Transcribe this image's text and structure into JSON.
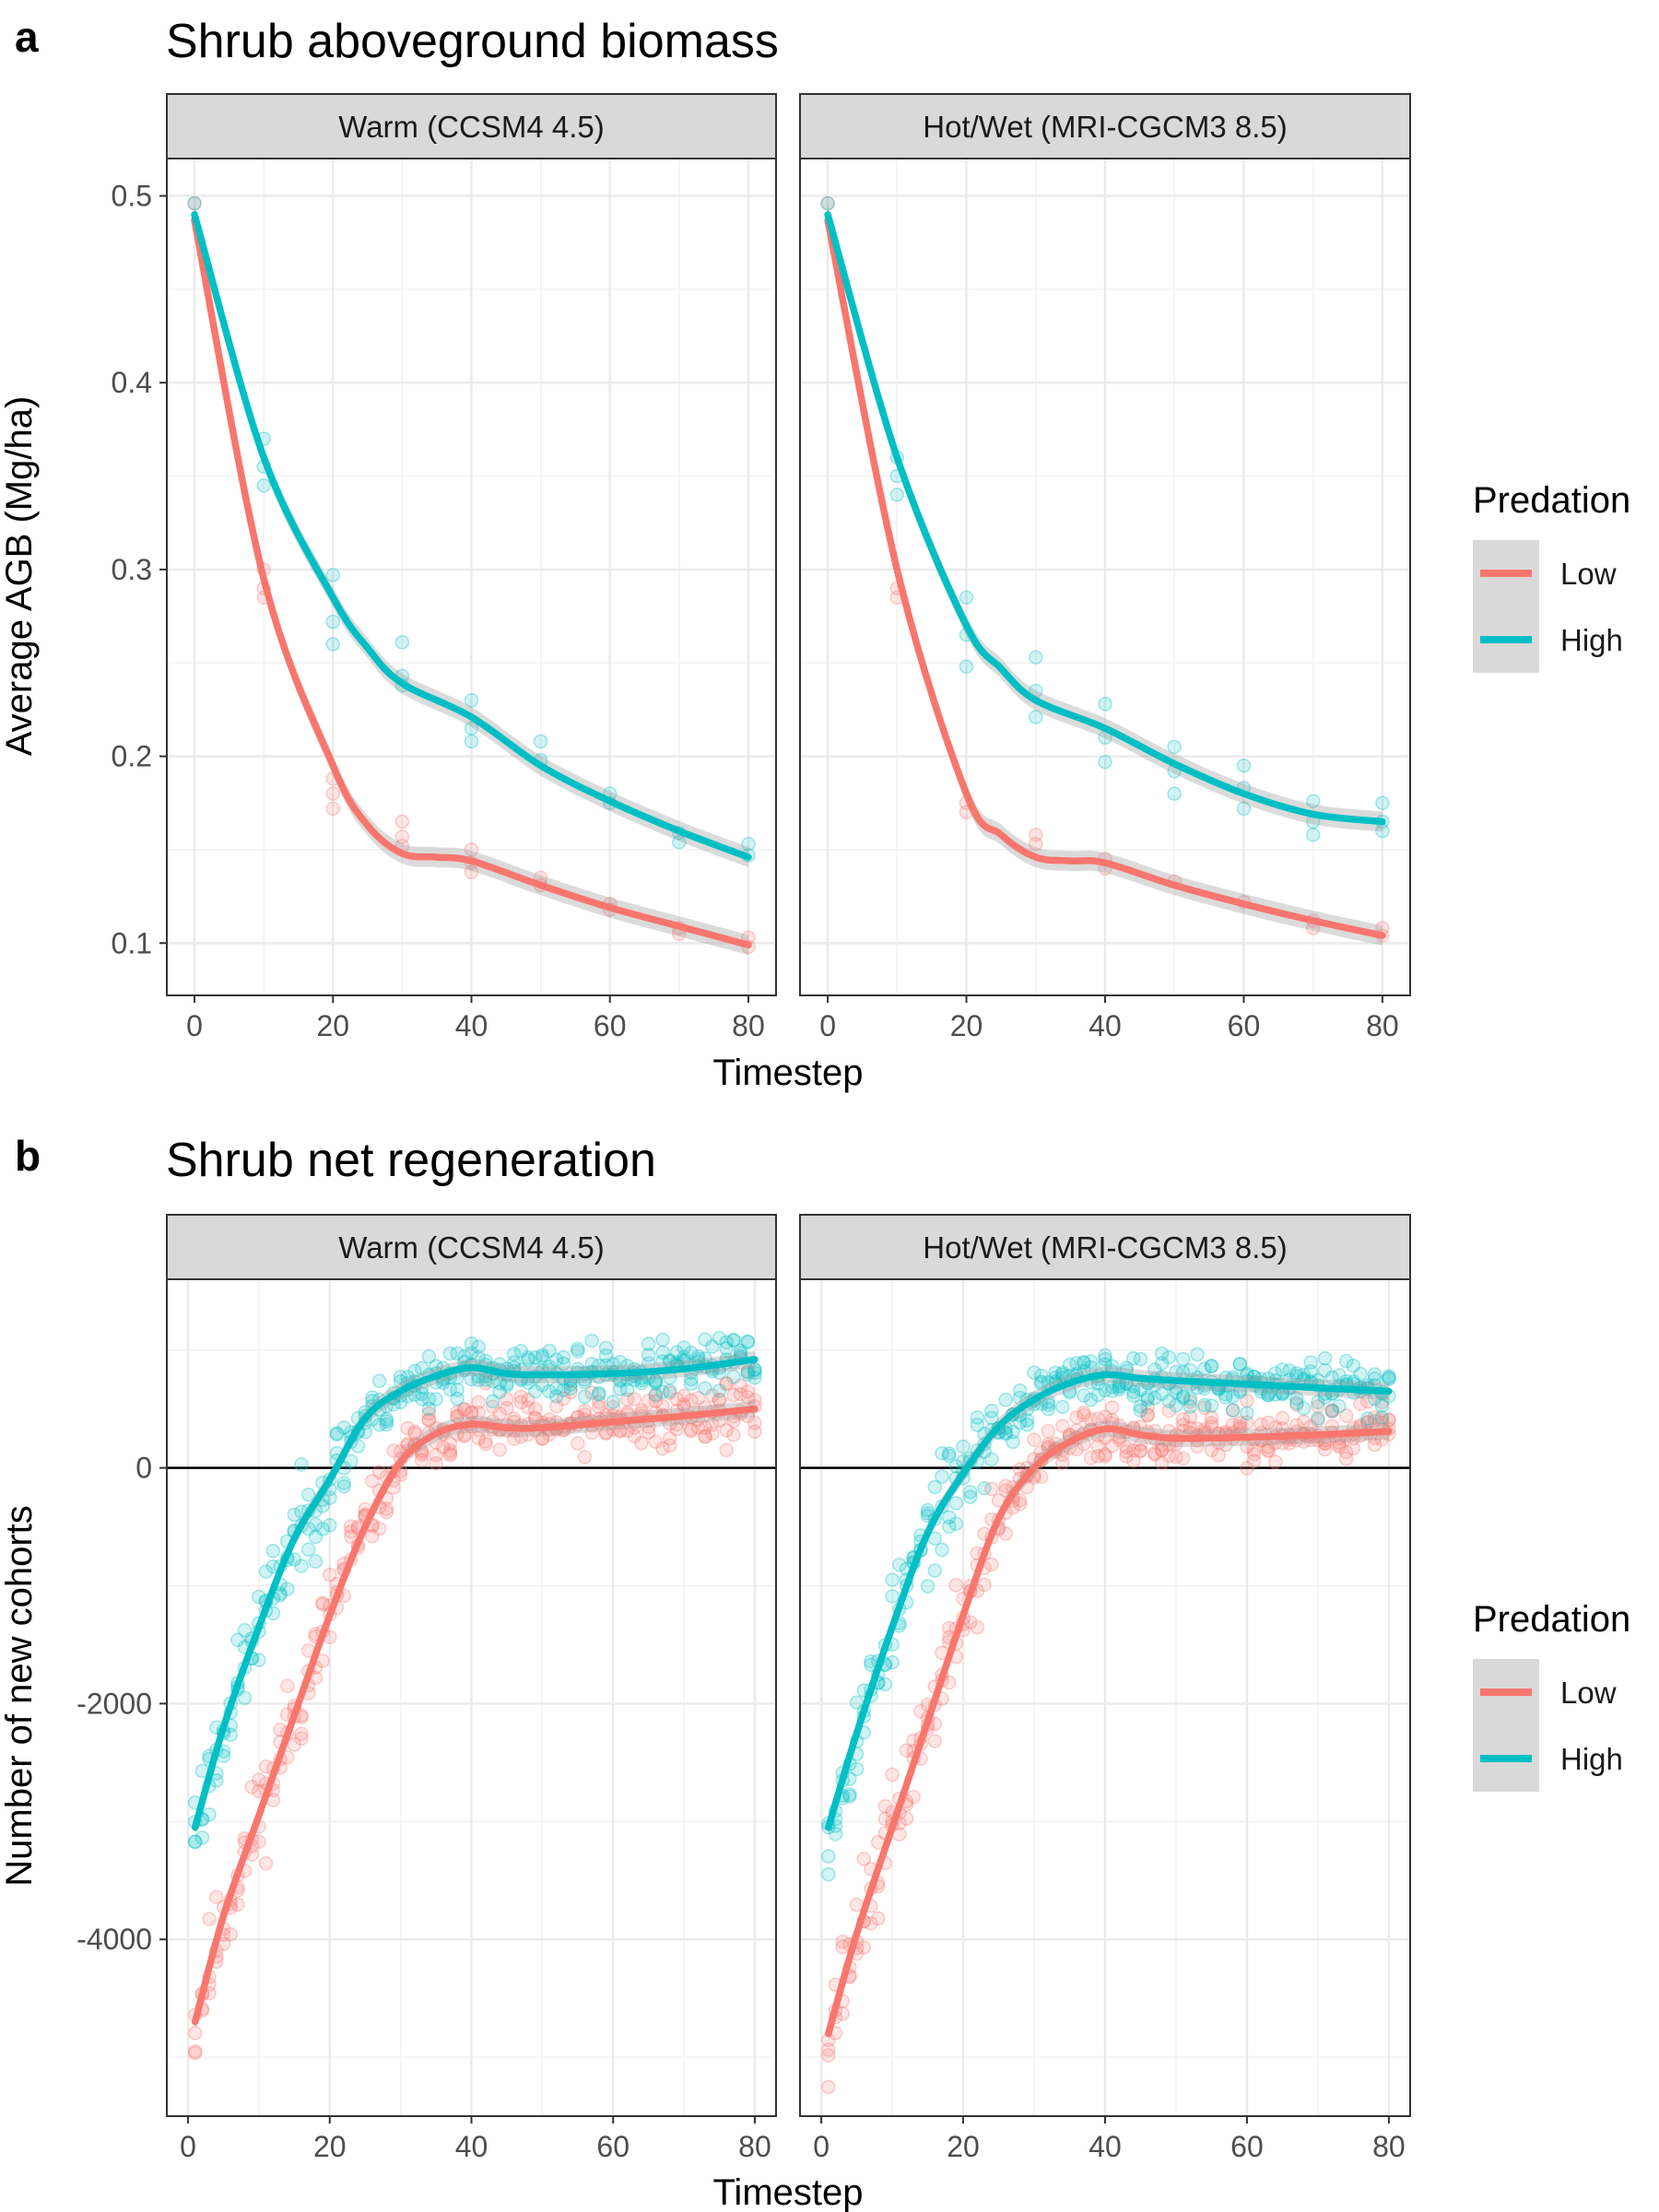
{
  "chart_data": [
    {
      "type": "line",
      "panel_label": "a",
      "title": "Shrub aboveground biomass",
      "xlabel": "Timestep",
      "ylabel": "Average AGB (Mg/ha)",
      "xlim": [
        -4,
        84
      ],
      "ylim": [
        0.072,
        0.52
      ],
      "xticks": [
        0,
        20,
        40,
        60,
        80
      ],
      "yticks": [
        0.1,
        0.2,
        0.3,
        0.4,
        0.5
      ],
      "ytick_labels": [
        "0.1",
        "0.2",
        "0.3",
        "0.4",
        "0.5"
      ],
      "grid": true,
      "legend": {
        "title": "Predation",
        "position": "right",
        "entries": [
          "Low",
          "High"
        ]
      },
      "facets": [
        {
          "strip": "Warm (CCSM4 4.5)",
          "series": [
            {
              "name": "Low",
              "color": "#F8766D",
              "x": [
                0,
                10,
                20,
                25,
                30,
                35,
                40,
                50,
                60,
                70,
                80
              ],
              "y": [
                0.487,
                0.295,
                0.195,
                0.163,
                0.148,
                0.146,
                0.144,
                0.131,
                0.119,
                0.109,
                0.099
              ],
              "points": [
                [
                  0,
                  0.496
                ],
                [
                  10,
                  0.3
                ],
                [
                  10,
                  0.29
                ],
                [
                  10,
                  0.285
                ],
                [
                  20,
                  0.188
                ],
                [
                  20,
                  0.18
                ],
                [
                  20,
                  0.172
                ],
                [
                  30,
                  0.165
                ],
                [
                  30,
                  0.157
                ],
                [
                  30,
                  0.152
                ],
                [
                  40,
                  0.15
                ],
                [
                  40,
                  0.143
                ],
                [
                  40,
                  0.138
                ],
                [
                  50,
                  0.135
                ],
                [
                  50,
                  0.131
                ],
                [
                  60,
                  0.121
                ],
                [
                  60,
                  0.118
                ],
                [
                  70,
                  0.108
                ],
                [
                  70,
                  0.105
                ],
                [
                  80,
                  0.103
                ],
                [
                  80,
                  0.098
                ]
              ]
            },
            {
              "name": "High",
              "color": "#00BFC4",
              "x": [
                0,
                10,
                20,
                25,
                30,
                40,
                50,
                60,
                70,
                80
              ],
              "y": [
                0.49,
                0.36,
                0.285,
                0.258,
                0.239,
                0.221,
                0.195,
                0.176,
                0.16,
                0.146
              ],
              "points": [
                [
                  0,
                  0.496
                ],
                [
                  10,
                  0.37
                ],
                [
                  10,
                  0.355
                ],
                [
                  10,
                  0.345
                ],
                [
                  20,
                  0.297
                ],
                [
                  20,
                  0.272
                ],
                [
                  20,
                  0.26
                ],
                [
                  30,
                  0.261
                ],
                [
                  30,
                  0.243
                ],
                [
                  30,
                  0.238
                ],
                [
                  40,
                  0.23
                ],
                [
                  40,
                  0.215
                ],
                [
                  40,
                  0.208
                ],
                [
                  50,
                  0.208
                ],
                [
                  50,
                  0.198
                ],
                [
                  60,
                  0.18
                ],
                [
                  60,
                  0.175
                ],
                [
                  70,
                  0.159
                ],
                [
                  70,
                  0.154
                ],
                [
                  80,
                  0.153
                ],
                [
                  80,
                  0.147
                ]
              ]
            }
          ]
        },
        {
          "strip": "Hot/Wet (MRI-CGCM3 8.5)",
          "series": [
            {
              "name": "Low",
              "color": "#F8766D",
              "x": [
                0,
                10,
                20,
                25,
                30,
                35,
                40,
                50,
                60,
                70,
                80
              ],
              "y": [
                0.487,
                0.3,
                0.18,
                0.158,
                0.146,
                0.144,
                0.143,
                0.131,
                0.121,
                0.112,
                0.104
              ],
              "points": [
                [
                  0,
                  0.496
                ],
                [
                  10,
                  0.29
                ],
                [
                  10,
                  0.285
                ],
                [
                  20,
                  0.175
                ],
                [
                  20,
                  0.17
                ],
                [
                  30,
                  0.158
                ],
                [
                  30,
                  0.153
                ],
                [
                  40,
                  0.145
                ],
                [
                  40,
                  0.14
                ],
                [
                  50,
                  0.133
                ],
                [
                  60,
                  0.122
                ],
                [
                  70,
                  0.112
                ],
                [
                  70,
                  0.108
                ],
                [
                  80,
                  0.108
                ],
                [
                  80,
                  0.104
                ]
              ]
            },
            {
              "name": "High",
              "color": "#00BFC4",
              "x": [
                0,
                10,
                20,
                25,
                30,
                40,
                50,
                60,
                70,
                80
              ],
              "y": [
                0.49,
                0.36,
                0.27,
                0.247,
                0.23,
                0.215,
                0.196,
                0.18,
                0.169,
                0.165
              ],
              "points": [
                [
                  0,
                  0.496
                ],
                [
                  10,
                  0.36
                ],
                [
                  10,
                  0.35
                ],
                [
                  10,
                  0.34
                ],
                [
                  20,
                  0.285
                ],
                [
                  20,
                  0.265
                ],
                [
                  20,
                  0.248
                ],
                [
                  30,
                  0.253
                ],
                [
                  30,
                  0.235
                ],
                [
                  30,
                  0.221
                ],
                [
                  40,
                  0.228
                ],
                [
                  40,
                  0.21
                ],
                [
                  40,
                  0.197
                ],
                [
                  50,
                  0.205
                ],
                [
                  50,
                  0.192
                ],
                [
                  50,
                  0.18
                ],
                [
                  60,
                  0.195
                ],
                [
                  60,
                  0.183
                ],
                [
                  60,
                  0.172
                ],
                [
                  70,
                  0.176
                ],
                [
                  70,
                  0.165
                ],
                [
                  70,
                  0.158
                ],
                [
                  80,
                  0.175
                ],
                [
                  80,
                  0.165
                ],
                [
                  80,
                  0.16
                ]
              ]
            }
          ]
        }
      ]
    },
    {
      "type": "line",
      "panel_label": "b",
      "title": "Shrub net regeneration",
      "xlabel": "Timestep",
      "ylabel": "Number of new cohorts",
      "xlim": [
        -3,
        83
      ],
      "ylim": [
        -5500,
        1600
      ],
      "xticks": [
        0,
        20,
        40,
        60,
        80
      ],
      "yticks": [
        -4000,
        -2000,
        0
      ],
      "ytick_labels": [
        "-4000",
        "-2000",
        "0"
      ],
      "zero_line": true,
      "grid": true,
      "legend": {
        "title": "Predation",
        "position": "right",
        "entries": [
          "Low",
          "High"
        ]
      },
      "facets": [
        {
          "strip": "Warm (CCSM4 4.5)",
          "series": [
            {
              "name": "Low",
              "color": "#F8766D",
              "x": [
                1,
                5,
                10,
                15,
                20,
                25,
                30,
                35,
                40,
                45,
                50,
                60,
                70,
                80
              ],
              "y": [
                -4700,
                -3800,
                -2950,
                -2100,
                -1250,
                -500,
                50,
                290,
                370,
                340,
                340,
                390,
                440,
                500
              ],
              "scatter_spread": 420,
              "seed": 11
            },
            {
              "name": "High",
              "color": "#00BFC4",
              "x": [
                1,
                5,
                10,
                15,
                20,
                25,
                30,
                35,
                40,
                45,
                50,
                60,
                70,
                80
              ],
              "y": [
                -3050,
                -2200,
                -1350,
                -600,
                -100,
                420,
                650,
                780,
                850,
                800,
                790,
                800,
                840,
                920
              ],
              "scatter_spread": 380,
              "seed": 23
            }
          ]
        },
        {
          "strip": "Hot/Wet (MRI-CGCM3 8.5)",
          "series": [
            {
              "name": "Low",
              "color": "#F8766D",
              "x": [
                1,
                5,
                10,
                15,
                20,
                25,
                30,
                35,
                40,
                45,
                50,
                60,
                70,
                80
              ],
              "y": [
                -4800,
                -3950,
                -3050,
                -2150,
                -1250,
                -430,
                0,
                220,
                330,
                280,
                250,
                260,
                280,
                310
              ],
              "scatter_spread": 400,
              "seed": 37
            },
            {
              "name": "High",
              "color": "#00BFC4",
              "x": [
                1,
                5,
                10,
                15,
                20,
                25,
                30,
                35,
                40,
                45,
                50,
                60,
                70,
                80
              ],
              "y": [
                -3050,
                -2250,
                -1350,
                -550,
                -50,
                350,
                580,
                720,
                790,
                760,
                740,
                710,
                680,
                650
              ],
              "scatter_spread": 380,
              "seed": 53
            }
          ]
        }
      ]
    }
  ]
}
